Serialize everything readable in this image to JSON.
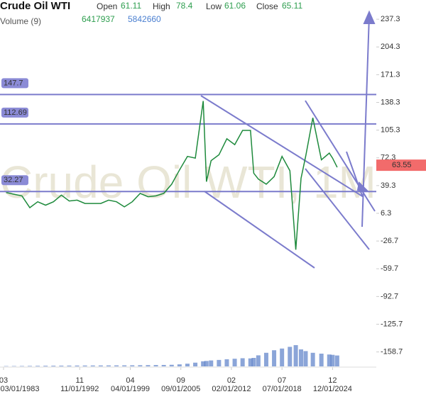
{
  "chart_data": {
    "type": "line",
    "title": "Crude Oil WTI",
    "volume_label": "Volume (9)",
    "ohlc": {
      "open_label": "Open",
      "open": 61.11,
      "high_label": "High",
      "high": 78.4,
      "low_label": "Low",
      "low": 61.06,
      "close_label": "Close",
      "close": 65.11
    },
    "volume_values": [
      6417937.0,
      5842660.0
    ],
    "watermark": "Crude Oil WTI, 1M",
    "x": [
      "07/01/1983",
      "07/01/1984",
      "07/01/1985",
      "07/01/1986",
      "07/01/1987",
      "07/01/1988",
      "07/01/1989",
      "07/01/1990",
      "07/01/1991",
      "07/01/1992",
      "07/01/1993",
      "07/01/1994",
      "07/01/1995",
      "07/01/1996",
      "07/01/1997",
      "07/01/1998",
      "07/01/1999",
      "07/01/2000",
      "07/01/2001",
      "07/01/2002",
      "07/01/2003",
      "07/01/2004",
      "07/01/2005",
      "07/01/2006",
      "07/01/2007",
      "07/01/2008",
      "12/01/2008",
      "07/01/2009",
      "07/01/2010",
      "07/01/2011",
      "07/01/2012",
      "07/01/2013",
      "07/01/2014",
      "12/01/2014",
      "07/01/2015",
      "07/01/2016",
      "07/01/2017",
      "07/01/2018",
      "07/01/2019",
      "04/01/2020",
      "12/01/2020",
      "07/01/2021",
      "06/01/2022",
      "07/01/2023",
      "07/01/2024",
      "12/01/2024",
      "07/01/2025"
    ],
    "series": [
      {
        "name": "Price",
        "color": "#1e8a3c",
        "values": [
          31,
          29,
          27,
          13,
          20,
          16,
          20,
          28,
          21,
          22,
          18,
          18,
          18,
          22,
          20,
          14,
          20,
          30,
          26,
          27,
          30,
          41,
          58,
          74,
          72,
          140,
          44,
          69,
          76,
          95,
          88,
          105,
          105,
          54,
          47,
          41,
          50,
          74,
          57,
          -37,
          48,
          74,
          120,
          70,
          78,
          72,
          61
        ]
      },
      {
        "name": "Volume",
        "color": "#5a7fc8",
        "values": [
          200000,
          220000,
          250000,
          300000,
          350000,
          400000,
          420000,
          450000,
          480000,
          500000,
          520000,
          540000,
          560000,
          580000,
          600000,
          620000,
          650000,
          700000,
          750000,
          800000,
          850000,
          950000,
          1200000,
          1600000,
          2200000,
          3000000,
          3200000,
          3500000,
          3800000,
          4200000,
          4500000,
          4800000,
          4700000,
          5000000,
          6500000,
          8000000,
          9500000,
          10500000,
          11500000,
          12500000,
          10000000,
          9000000,
          8000000,
          7500000,
          7000000,
          6800000,
          6417937
        ]
      }
    ],
    "levels": [
      147.7,
      112.69,
      32.27
    ],
    "last_price": 63.55,
    "ylim": [
      -170,
      245
    ],
    "yticks": [
      237.3,
      204.3,
      171.3,
      138.3,
      105.3,
      72.3,
      39.3,
      6.3,
      -26.7,
      -59.7,
      -92.7,
      -125.7,
      -158.7
    ],
    "xticks": [
      {
        "value": "03/01/1983",
        "label": "03"
      },
      {
        "value": "11/01/1992",
        "label": "11"
      },
      {
        "value": "04/01/1999",
        "label": "04"
      },
      {
        "value": "09/01/2005",
        "label": "09"
      },
      {
        "value": "02/01/2012",
        "label": "02"
      },
      {
        "value": "07/01/2018",
        "label": "07"
      },
      {
        "value": "12/01/2024",
        "label": "12"
      }
    ]
  }
}
